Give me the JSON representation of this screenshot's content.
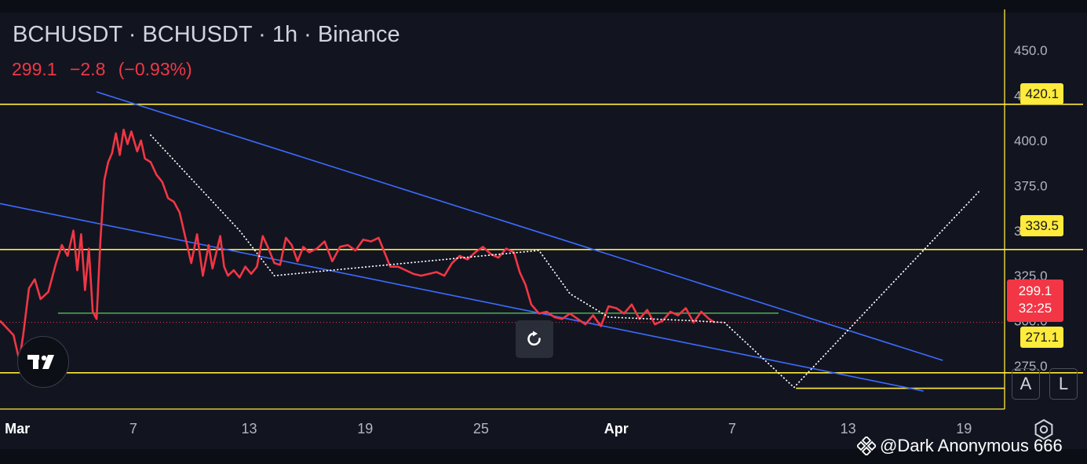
{
  "header": {
    "title": "BCHUSDT · BCHUSDT · 1h · Binance",
    "last_price": "299.1",
    "change": "−2.8",
    "change_pct": "(−0.93%)"
  },
  "price_scale": {
    "ticks": [
      "450.0",
      "425.0",
      "400.0",
      "375.0",
      "350.0",
      "325.0",
      "300.0",
      "275.0"
    ],
    "levels": [
      {
        "label": "420.1",
        "value": 420.1,
        "color": "#ffeb3b"
      },
      {
        "label": "339.5",
        "value": 339.5,
        "color": "#ffeb3b"
      },
      {
        "label": "271.1",
        "value": 271.1,
        "color": "#ffeb3b"
      }
    ],
    "current": {
      "price": "299.1",
      "countdown": "32:25",
      "color": "#f23645"
    }
  },
  "time_scale": {
    "ticks": [
      {
        "label": "Mar",
        "day": 1,
        "bold": true
      },
      {
        "label": "7",
        "day": 7
      },
      {
        "label": "13",
        "day": 13
      },
      {
        "label": "19",
        "day": 19
      },
      {
        "label": "25",
        "day": 25
      },
      {
        "label": "Apr",
        "day": 32,
        "bold": true
      },
      {
        "label": "7",
        "day": 38
      },
      {
        "label": "13",
        "day": 44
      },
      {
        "label": "19",
        "day": 50
      }
    ]
  },
  "chart_data": {
    "type": "line",
    "symbol": "BCHUSDT",
    "interval": "1h",
    "exchange": "Binance",
    "x_unit": "day (1 = Mar 1, 32 = Apr 1)",
    "xlim": [
      0.1,
      52.1
    ],
    "ylim": [
      251,
      471
    ],
    "series": [
      {
        "color": "#f23645",
        "x": [
          0.1,
          0.8,
          1.1,
          1.3,
          1.6,
          1.9,
          2.2,
          2.6,
          3.0,
          3.3,
          3.6,
          3.9,
          4.1,
          4.3,
          4.5,
          4.7,
          4.9,
          5.1,
          5.3,
          5.5,
          5.7,
          5.9,
          6.1,
          6.3,
          6.5,
          6.7,
          6.9,
          7.2,
          7.4,
          7.6,
          7.9,
          8.2,
          8.5,
          8.8,
          9.1,
          9.4,
          9.7,
          10.0,
          10.3,
          10.6,
          10.9,
          11.1,
          11.3,
          11.5,
          11.7,
          11.9,
          12.2,
          12.5,
          12.8,
          13.1,
          13.4,
          13.7,
          14.0,
          14.3,
          14.6,
          14.9,
          15.2,
          15.5,
          15.8,
          16.1,
          16.5,
          16.9,
          17.3,
          17.7,
          18.1,
          18.5,
          18.9,
          19.3,
          19.7,
          20.0,
          20.3,
          20.7,
          21.1,
          21.5,
          21.9,
          22.3,
          22.7,
          23.1,
          23.5,
          23.9,
          24.3,
          24.7,
          25.1,
          25.5,
          25.9,
          26.3,
          26.7,
          27.0,
          27.3,
          27.6,
          28.0,
          28.4,
          28.8,
          29.2,
          29.6,
          30.0,
          30.4,
          30.8,
          31.2,
          31.6,
          32.0,
          32.4,
          32.8,
          33.2,
          33.6,
          34.0,
          34.4,
          34.8,
          35.2,
          35.6,
          36.0,
          36.4,
          36.8,
          37.1
        ],
        "values": [
          300,
          292,
          278,
          292,
          318,
          323,
          312,
          316,
          332,
          342,
          336,
          350,
          328,
          348,
          317,
          340,
          305,
          301,
          345,
          378,
          388,
          393,
          404,
          392,
          406,
          398,
          405,
          394,
          400,
          390,
          388,
          381,
          377,
          368,
          366,
          360,
          346,
          332,
          348,
          325,
          342,
          329,
          338,
          347,
          330,
          325,
          328,
          324,
          330,
          326,
          330,
          347,
          340,
          332,
          331,
          346,
          342,
          333,
          341,
          338,
          340,
          344,
          333,
          341,
          342,
          339,
          345,
          344,
          346,
          338,
          330,
          330,
          328,
          326,
          325,
          326,
          327,
          325,
          332,
          336,
          334,
          338,
          341,
          337,
          335,
          340,
          338,
          327,
          320,
          309,
          304,
          305,
          302,
          301,
          304,
          301,
          298,
          303,
          297,
          308,
          307,
          304,
          309,
          301,
          306,
          298,
          300,
          305,
          303,
          307,
          299,
          305,
          301,
          299
        ]
      }
    ],
    "levels": [
      420.1,
      339.5,
      271.1
    ],
    "current_price_line": 299.1,
    "drawings": {
      "channel_upper": {
        "color": "#3d6bff",
        "points": [
          [
            5.1,
            427
          ],
          [
            48.9,
            278
          ]
        ]
      },
      "channel_lower": {
        "color": "#3d6bff",
        "points": [
          [
            0.1,
            365
          ],
          [
            47.9,
            261
          ]
        ]
      },
      "support_line": {
        "color": "#4caf50",
        "points": [
          [
            3.1,
            304.2
          ],
          [
            40.4,
            304.2
          ]
        ]
      },
      "lower_level": {
        "color": "#ffeb3b",
        "points": [
          [
            41.3,
            262.5
          ],
          [
            52.1,
            262.5
          ]
        ]
      },
      "path": {
        "color": "#ffffff",
        "style": "dotted",
        "points": [
          [
            7.9,
            403
          ],
          [
            12.5,
            350
          ],
          [
            14.3,
            325
          ],
          [
            28.0,
            339
          ],
          [
            29.6,
            315
          ],
          [
            31.6,
            302
          ],
          [
            36.0,
            300
          ],
          [
            37.6,
            299
          ],
          [
            41.2,
            263
          ],
          [
            50.8,
            372
          ]
        ]
      }
    }
  },
  "buttons": {
    "auto_label": "A",
    "log_label": "L"
  },
  "watermark": {
    "text": "@Dark Anonymous 666"
  }
}
